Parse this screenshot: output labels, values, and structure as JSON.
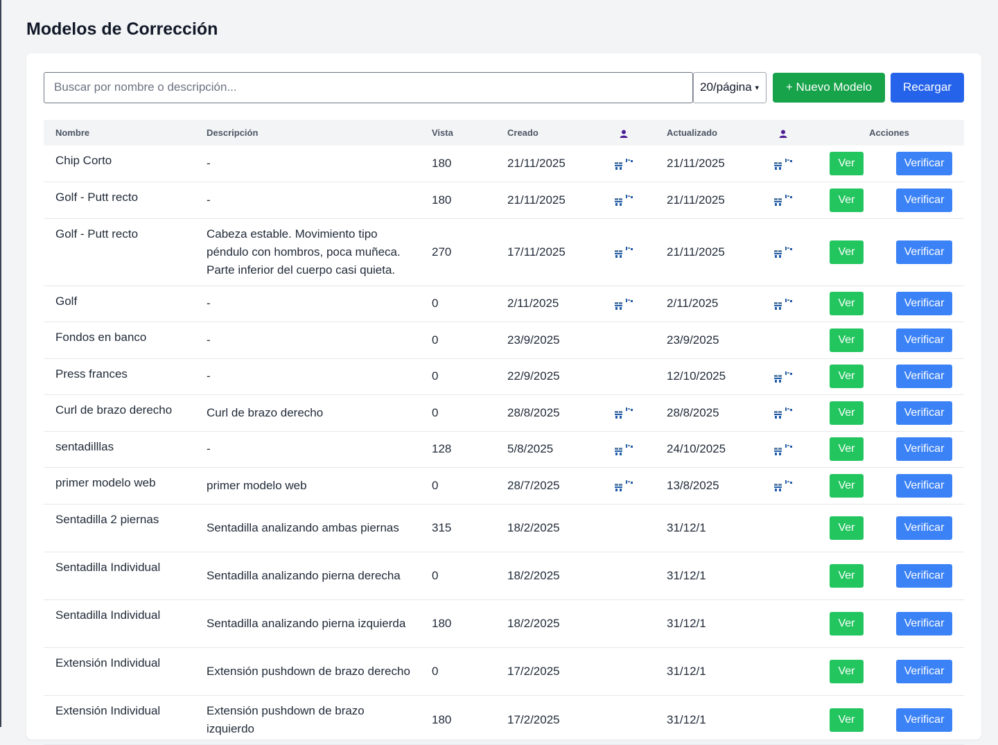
{
  "page": {
    "title": "Modelos de Corrección"
  },
  "toolbar": {
    "search_placeholder": "Buscar por nombre o descripción...",
    "page_size": "20/página",
    "new_label": "+ Nuevo Modelo",
    "reload_label": "Recargar"
  },
  "table": {
    "headers": {
      "name": "Nombre",
      "description": "Descripción",
      "view": "Vista",
      "created": "Creado",
      "created_by_icon": "person-icon",
      "updated": "Actualizado",
      "updated_by_icon": "person-icon",
      "actions": "Acciones"
    },
    "ver_label": "Ver",
    "verify_label": "Verificar",
    "rows": [
      {
        "name": "Chip Corto",
        "description": "-",
        "view": "180",
        "created": "21/11/2025",
        "created_icon": true,
        "updated": "21/11/2025",
        "updated_icon": true
      },
      {
        "name": "Golf - Putt recto",
        "description": "-",
        "view": "180",
        "created": "21/11/2025",
        "created_icon": true,
        "updated": "21/11/2025",
        "updated_icon": true
      },
      {
        "name": "Golf - Putt recto",
        "description": "Cabeza estable. Movimiento tipo péndulo con hombros, poca muñeca. Parte inferior del cuerpo casi quieta.",
        "view": "270",
        "created": "17/11/2025",
        "created_icon": true,
        "updated": "21/11/2025",
        "updated_icon": true
      },
      {
        "name": "Golf",
        "description": "-",
        "view": "0",
        "created": "2/11/2025",
        "created_icon": true,
        "updated": "2/11/2025",
        "updated_icon": true
      },
      {
        "name": "Fondos en banco",
        "description": "-",
        "view": "0",
        "created": "23/9/2025",
        "created_icon": false,
        "updated": "23/9/2025",
        "updated_icon": false
      },
      {
        "name": "Press frances",
        "description": "-",
        "view": "0",
        "created": "22/9/2025",
        "created_icon": false,
        "updated": "12/10/2025",
        "updated_icon": true
      },
      {
        "name": "Curl de brazo derecho",
        "description": "Curl de brazo derecho",
        "view": "0",
        "created": "28/8/2025",
        "created_icon": true,
        "updated": "28/8/2025",
        "updated_icon": true
      },
      {
        "name": "sentadilllas",
        "description": "-",
        "view": "128",
        "created": "5/8/2025",
        "created_icon": true,
        "updated": "24/10/2025",
        "updated_icon": true
      },
      {
        "name": "primer modelo web",
        "description": "primer modelo web",
        "view": "0",
        "created": "28/7/2025",
        "created_icon": true,
        "updated": "13/8/2025",
        "updated_icon": true
      },
      {
        "name": "Sentadilla 2 piernas",
        "description": "Sentadilla analizando ambas piernas",
        "view": "315",
        "created": "18/2/2025",
        "created_icon": false,
        "updated": "31/12/1",
        "updated_icon": false
      },
      {
        "name": "Sentadilla Individual",
        "description": "Sentadilla analizando pierna derecha",
        "view": "0",
        "created": "18/2/2025",
        "created_icon": false,
        "updated": "31/12/1",
        "updated_icon": false
      },
      {
        "name": "Sentadilla Individual",
        "description": "Sentadilla analizando pierna izquierda",
        "view": "180",
        "created": "18/2/2025",
        "created_icon": false,
        "updated": "31/12/1",
        "updated_icon": false
      },
      {
        "name": "Extensión Individual",
        "description": "Extensión pushdown de brazo derecho",
        "view": "0",
        "created": "17/2/2025",
        "created_icon": false,
        "updated": "31/12/1",
        "updated_icon": false
      },
      {
        "name": "Extensión Individual",
        "description": "Extensión pushdown de brazo izquierdo",
        "view": "180",
        "created": "17/2/2025",
        "created_icon": false,
        "updated": "31/12/1",
        "updated_icon": false
      }
    ]
  },
  "colors": {
    "green_button": "#22c55e",
    "blue_button": "#3b82f6",
    "new_button": "#16a34a",
    "reload_button": "#2563eb",
    "person_icon": "#4c1d95"
  }
}
